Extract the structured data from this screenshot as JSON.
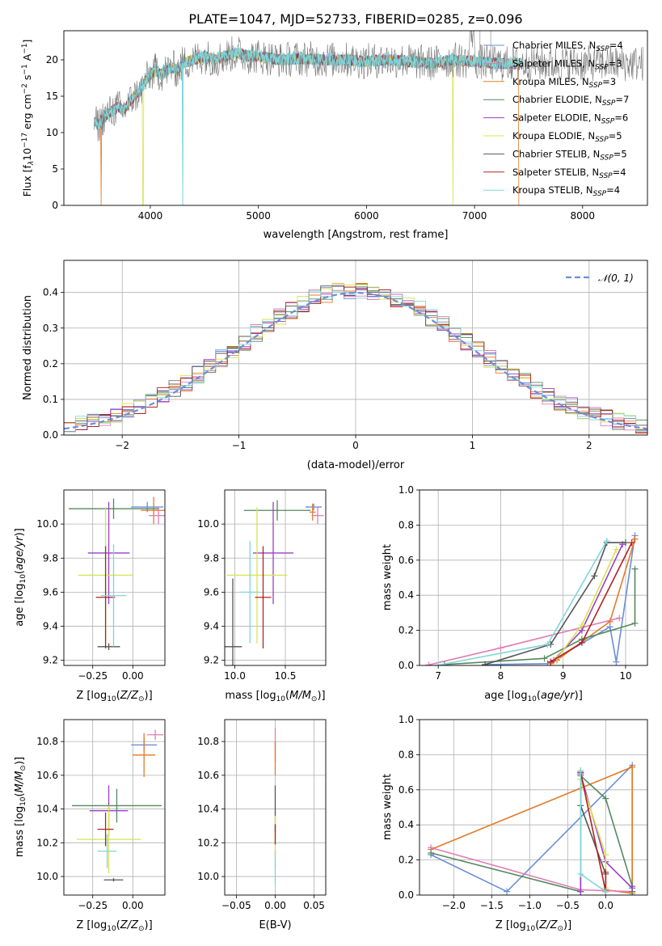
{
  "title": "PLATE=1047, MJD=52733, FIBERID=0285, z=0.096",
  "colors": {
    "C1": "#6a8fd8",
    "C2": "#e37a27",
    "C3": "#e27cb2",
    "C4": "#55885f",
    "C5": "#9b3fc7",
    "C6": "#d7e34d",
    "C7": "#555555",
    "C8": "#b32222",
    "C9": "#7ed6da"
  },
  "legend": {
    "spectrum": [
      {
        "label": "Chabrier MILES, N",
        "sub": "SSP",
        "tail": "=4",
        "color": "#6a8fd8"
      },
      {
        "label": "Salpeter MILES, N",
        "sub": "SSP",
        "tail": "=3",
        "color": "#e27cb2"
      },
      {
        "label": "Kroupa MILES, N",
        "sub": "SSP",
        "tail": "=3",
        "color": "#e37a27"
      },
      {
        "label": "Chabrier ELODIE, N",
        "sub": "SSP",
        "tail": "=7",
        "color": "#55885f"
      },
      {
        "label": "Salpeter ELODIE, N",
        "sub": "SSP",
        "tail": "=6",
        "color": "#9b3fc7"
      },
      {
        "label": "Kroupa ELODIE, N",
        "sub": "SSP",
        "tail": "=5",
        "color": "#d7e34d"
      },
      {
        "label": "Chabrier STELIB, N",
        "sub": "SSP",
        "tail": "=5",
        "color": "#555555"
      },
      {
        "label": "Salpeter STELIB, N",
        "sub": "SSP",
        "tail": "=4",
        "color": "#b32222"
      },
      {
        "label": "Kroupa STELIB, N",
        "sub": "SSP",
        "tail": "=4",
        "color": "#7ed6da"
      }
    ],
    "normal": {
      "label": "𝒩(0, 1)",
      "color": "#6a8fd8"
    }
  },
  "chart_data": [
    {
      "type": "line",
      "id": "spectrum",
      "xlabel": "wavelength [Angstrom, rest frame]",
      "ylabel": "Flux [f",
      "ylabel_sub": "λ",
      "ylabel_rest": "10",
      "ylabel_sup": "−17",
      "ylabel_tail": " erg cm",
      "ylabel_sup2": "−2",
      "ylabel_tail2": " s",
      "ylabel_sup3": "−1",
      "ylabel_tail3": " A",
      "ylabel_sup4": "−1",
      "ylabel_end": "]",
      "xlim": [
        3200,
        8600
      ],
      "ylim": [
        0,
        24
      ],
      "xticks": [
        4000,
        5000,
        6000,
        7000,
        8000
      ],
      "yticks": [
        0,
        5,
        10,
        15,
        20
      ],
      "grid": false,
      "continuum": {
        "x": [
          3480,
          3520,
          3560,
          3600,
          3650,
          3700,
          3750,
          3800,
          3850,
          3900,
          3950,
          4000,
          4050,
          4100,
          4150,
          4200,
          4250,
          4300,
          4400,
          4500,
          4600,
          4700,
          4800,
          4900,
          5000,
          5200,
          5400,
          5600,
          5800,
          6000,
          6200,
          6400,
          6600,
          6800,
          7000,
          7200,
          7400
        ],
        "y": [
          11.5,
          11.0,
          12.0,
          12.5,
          13.0,
          13.5,
          13.0,
          14.0,
          15.0,
          15.5,
          17.0,
          18.0,
          18.5,
          18.0,
          18.5,
          19.0,
          18.5,
          19.5,
          20.0,
          20.5,
          20.0,
          20.5,
          21.0,
          20.5,
          20.5,
          20.0,
          20.2,
          20.0,
          20.0,
          19.8,
          20.0,
          19.8,
          19.5,
          20.0,
          19.8,
          19.5,
          19.5
        ]
      },
      "absorption_drops": [
        3545,
        3933,
        4300,
        6800,
        7410
      ],
      "spike_wavelengths": [
        7050,
        7150
      ]
    },
    {
      "type": "step",
      "id": "residuals",
      "xlabel": "(data-model)/error",
      "ylabel": "Normed distribution",
      "xlim": [
        -2.5,
        2.5
      ],
      "ylim": [
        0,
        0.49
      ],
      "xticks": [
        -2,
        -1,
        0,
        1,
        2
      ],
      "xtick_labels": [
        "−2",
        "−1",
        "0",
        "1",
        "2"
      ],
      "yticks": [
        0,
        0.1,
        0.2,
        0.3,
        0.4
      ],
      "ytick_labels": [
        "0.0",
        "0.1",
        "0.2",
        "0.3",
        "0.4"
      ],
      "grid": true,
      "bin_width": 0.1,
      "legend_position": "top-right"
    },
    {
      "type": "errorbar",
      "id": "age-vs-z",
      "xlabel": "Z [log",
      "xlabel_sub": "10",
      "xlabel_rest": "(Z/Z",
      "xlabel_sub2": "⊙",
      "xlabel_end": ")]",
      "ylabel": "age  [log",
      "ylabel_sub": "10",
      "ylabel_rest": "(age/yr)]",
      "xlim": [
        -0.43,
        0.2
      ],
      "ylim": [
        9.17,
        10.2
      ],
      "xticks": [
        -0.25,
        0.0
      ],
      "xtick_labels": [
        "−0.25",
        "0.00"
      ],
      "yticks": [
        9.2,
        9.4,
        9.6,
        9.8,
        10.0
      ],
      "ytick_labels": [
        "9.2",
        "9.4",
        "9.6",
        "9.8",
        "10.0"
      ],
      "points": [
        {
          "x": 0.09,
          "y": 10.1,
          "xerr": 0.1,
          "yerr": 0.03,
          "color": "#6a8fd8"
        },
        {
          "x": 0.13,
          "y": 10.08,
          "xerr": 0.08,
          "yerr": 0.08,
          "color": "#e37a27"
        },
        {
          "x": 0.16,
          "y": 10.05,
          "xerr": 0.06,
          "yerr": 0.05,
          "color": "#e27cb2"
        },
        {
          "x": -0.12,
          "y": 10.09,
          "xerr": 0.28,
          "yerr": 0.06,
          "color": "#55885f"
        },
        {
          "x": -0.15,
          "y": 9.83,
          "xerr": 0.13,
          "yerr": 0.3,
          "color": "#9b3fc7"
        },
        {
          "x": -0.17,
          "y": 9.7,
          "xerr": 0.17,
          "yerr": 0.4,
          "color": "#d7e34d"
        },
        {
          "x": -0.15,
          "y": 9.28,
          "xerr": 0.07,
          "yerr": 0.02,
          "color": "#555555"
        },
        {
          "x": -0.17,
          "y": 9.57,
          "xerr": 0.06,
          "yerr": 0.3,
          "color": "#b32222"
        },
        {
          "x": -0.12,
          "y": 9.58,
          "xerr": 0.08,
          "yerr": 0.3,
          "color": "#7ed6da"
        }
      ]
    },
    {
      "type": "errorbar",
      "id": "age-vs-mass",
      "xlabel": "mass [log",
      "xlabel_sub": "10",
      "xlabel_rest": "(M/M",
      "xlabel_sub2": "⊙",
      "xlabel_end": ")]",
      "xlim": [
        9.9,
        10.9
      ],
      "ylim": [
        9.17,
        10.2
      ],
      "xticks": [
        10.0,
        10.5
      ],
      "xtick_labels": [
        "10.0",
        "10.5"
      ],
      "yticks": [
        9.2,
        9.4,
        9.6,
        9.8,
        10.0
      ],
      "ytick_labels": [
        "9.2",
        "9.4",
        "9.6",
        "9.8",
        "10.0"
      ],
      "points": [
        {
          "x": 10.78,
          "y": 10.1,
          "xerr": 0.08,
          "yerr": 0.02,
          "color": "#6a8fd8"
        },
        {
          "x": 10.77,
          "y": 10.07,
          "xerr": 0.03,
          "yerr": 0.05,
          "color": "#e37a27"
        },
        {
          "x": 10.82,
          "y": 10.05,
          "xerr": 0.06,
          "yerr": 0.05,
          "color": "#e27cb2"
        },
        {
          "x": 10.42,
          "y": 10.08,
          "xerr": 0.33,
          "yerr": 0.06,
          "color": "#55885f"
        },
        {
          "x": 10.38,
          "y": 9.83,
          "xerr": 0.2,
          "yerr": 0.3,
          "color": "#9b3fc7"
        },
        {
          "x": 10.22,
          "y": 9.7,
          "xerr": 0.3,
          "yerr": 0.4,
          "color": "#d7e34d"
        },
        {
          "x": 9.98,
          "y": 9.28,
          "xerr": 0.09,
          "yerr": 0.4,
          "color": "#555555"
        },
        {
          "x": 10.28,
          "y": 9.57,
          "xerr": 0.08,
          "yerr": 0.3,
          "color": "#b32222"
        },
        {
          "x": 10.15,
          "y": 9.6,
          "xerr": 0.1,
          "yerr": 0.3,
          "color": "#7ed6da"
        }
      ]
    },
    {
      "type": "line",
      "id": "weight-vs-age",
      "xlabel": "age  [log",
      "xlabel_sub": "10",
      "xlabel_rest": "(age/yr)]",
      "ylabel": "mass weight",
      "xlim": [
        6.7,
        10.35
      ],
      "ylim": [
        0,
        1
      ],
      "xticks": [
        7,
        8,
        9,
        10
      ],
      "xtick_labels": [
        "7",
        "8",
        "9",
        "10"
      ],
      "yticks": [
        0,
        0.2,
        0.4,
        0.6,
        0.8,
        1.0
      ],
      "ytick_labels": [
        "0.0",
        "0.2",
        "0.4",
        "0.6",
        "0.8",
        "1.0"
      ],
      "grid": true,
      "series": [
        {
          "color": "#6a8fd8",
          "x": [
            7.75,
            8.75,
            9.75,
            9.85,
            10.15
          ],
          "y": [
            0.005,
            0.01,
            0.22,
            0.02,
            0.74
          ]
        },
        {
          "color": "#e37a27",
          "x": [
            8.8,
            8.9,
            9.75,
            10.15
          ],
          "y": [
            0.01,
            0.03,
            0.25,
            0.72
          ]
        },
        {
          "color": "#e27cb2",
          "x": [
            6.85,
            8.0,
            9.9
          ],
          "y": [
            0.003,
            0.1,
            0.27
          ]
        },
        {
          "color": "#55885f",
          "x": [
            7.1,
            8.7,
            9.3,
            10.15,
            10.15
          ],
          "y": [
            0.005,
            0.04,
            0.15,
            0.24,
            0.55
          ]
        },
        {
          "color": "#9b3fc7",
          "x": [
            8.85,
            9.3,
            9.95
          ],
          "y": [
            0.03,
            0.2,
            0.69
          ]
        },
        {
          "color": "#d7e34d",
          "x": [
            8.9,
            9.3,
            9.85
          ],
          "y": [
            0.04,
            0.23,
            0.66
          ]
        },
        {
          "color": "#555555",
          "x": [
            7.75,
            8.8,
            9.5,
            9.7,
            10.0
          ],
          "y": [
            0.005,
            0.12,
            0.51,
            0.7,
            0.7
          ]
        },
        {
          "color": "#b32222",
          "x": [
            8.8,
            9.3,
            10.1
          ],
          "y": [
            0.02,
            0.13,
            0.7
          ]
        },
        {
          "color": "#7ed6da",
          "x": [
            7.0,
            8.75,
            9.7
          ],
          "y": [
            0.002,
            0.12,
            0.71
          ]
        }
      ]
    },
    {
      "type": "errorbar",
      "id": "mass-vs-z",
      "xlabel": "Z [log",
      "xlabel_sub": "10",
      "xlabel_rest": "(Z/Z",
      "xlabel_sub2": "⊙",
      "xlabel_end": ")]",
      "ylabel": "mass [log",
      "ylabel_sub": "10",
      "ylabel_rest": "(M/M",
      "ylabel_sub2": "⊙",
      "ylabel_end": ")]",
      "xlim": [
        -0.43,
        0.2
      ],
      "ylim": [
        9.89,
        10.93
      ],
      "xticks": [
        -0.25,
        0.0
      ],
      "xtick_labels": [
        "−0.25",
        "0.00"
      ],
      "yticks": [
        10.0,
        10.2,
        10.4,
        10.6,
        10.8
      ],
      "ytick_labels": [
        "10.0",
        "10.2",
        "10.4",
        "10.6",
        "10.8"
      ],
      "points": [
        {
          "x": 0.07,
          "y": 10.78,
          "xerr": 0.08,
          "yerr": 0.04,
          "color": "#6a8fd8"
        },
        {
          "x": 0.07,
          "y": 10.72,
          "xerr": 0.07,
          "yerr": 0.13,
          "color": "#e37a27"
        },
        {
          "x": 0.14,
          "y": 10.84,
          "xerr": 0.05,
          "yerr": 0.03,
          "color": "#e27cb2"
        },
        {
          "x": -0.1,
          "y": 10.42,
          "xerr": 0.28,
          "yerr": 0.1,
          "color": "#55885f"
        },
        {
          "x": -0.15,
          "y": 10.39,
          "xerr": 0.12,
          "yerr": 0.15,
          "color": "#9b3fc7"
        },
        {
          "x": -0.15,
          "y": 10.22,
          "xerr": 0.2,
          "yerr": 0.2,
          "color": "#d7e34d"
        },
        {
          "x": -0.12,
          "y": 9.98,
          "xerr": 0.06,
          "yerr": 0.01,
          "color": "#555555"
        },
        {
          "x": -0.17,
          "y": 10.28,
          "xerr": 0.05,
          "yerr": 0.1,
          "color": "#b32222"
        },
        {
          "x": -0.16,
          "y": 10.15,
          "xerr": 0.06,
          "yerr": 0.1,
          "color": "#7ed6da"
        }
      ]
    },
    {
      "type": "errorbar",
      "id": "mass-vs-ebv",
      "xlabel": "E(B-V)",
      "xlim": [
        -0.065,
        0.065
      ],
      "ylim": [
        9.89,
        10.93
      ],
      "xticks": [
        -0.05,
        0.0,
        0.05
      ],
      "xtick_labels": [
        "−0.05",
        "0.00",
        "0.05"
      ],
      "yticks": [
        10.0,
        10.2,
        10.4,
        10.6,
        10.8
      ],
      "ytick_labels": [
        "10.0",
        "10.2",
        "10.4",
        "10.6",
        "10.8"
      ],
      "points": [
        {
          "x": 0.0,
          "y": 10.78,
          "xerr": 0.0,
          "yerr": 0.1,
          "color": "#e27cb2"
        },
        {
          "x": 0.0,
          "y": 10.7,
          "xerr": 0.0,
          "yerr": 0.1,
          "color": "#e37a27"
        },
        {
          "x": 0.0,
          "y": 10.4,
          "xerr": 0.0,
          "yerr": 0.14,
          "color": "#555555"
        },
        {
          "x": 0.0,
          "y": 10.2,
          "xerr": 0.0,
          "yerr": 0.16,
          "color": "#d7e34d"
        },
        {
          "x": 0.0,
          "y": 10.25,
          "xerr": 0.0,
          "yerr": 0.06,
          "color": "#b32222"
        },
        {
          "x": 0.0,
          "y": 10.05,
          "xerr": 0.0,
          "yerr": 0.1,
          "color": "#7ed6da"
        }
      ]
    },
    {
      "type": "line",
      "id": "weight-vs-z",
      "xlabel": "Z [log",
      "xlabel_sub": "10",
      "xlabel_rest": "(Z/Z",
      "xlabel_sub2": "⊙",
      "xlabel_end": ")]",
      "ylabel": "mass weight",
      "xlim": [
        -2.45,
        0.55
      ],
      "ylim": [
        0,
        1
      ],
      "xticks": [
        -2.0,
        -1.5,
        -1.0,
        -0.5,
        0.0
      ],
      "xtick_labels": [
        "−2.0",
        "−1.5",
        "−1.0",
        "−0.5",
        "0.0"
      ],
      "yticks": [
        0,
        0.2,
        0.4,
        0.6,
        0.8,
        1.0
      ],
      "ytick_labels": [
        "0.0",
        "0.2",
        "0.4",
        "0.6",
        "0.8",
        "1.0"
      ],
      "grid": true,
      "series": [
        {
          "color": "#6a8fd8",
          "x": [
            -2.3,
            -1.3,
            0.35,
            0.35
          ],
          "y": [
            0.23,
            0.02,
            0.74,
            0.0
          ]
        },
        {
          "color": "#e37a27",
          "x": [
            -2.3,
            0.35,
            0.35,
            0.0
          ],
          "y": [
            0.26,
            0.73,
            0.01,
            0.03
          ]
        },
        {
          "color": "#e27cb2",
          "x": [
            -2.3,
            -0.33,
            0.35
          ],
          "y": [
            0.27,
            0.03,
            0.02
          ]
        },
        {
          "color": "#55885f",
          "x": [
            -2.3,
            -0.33,
            -0.33,
            0.0,
            0.35,
            0.35
          ],
          "y": [
            0.24,
            0.02,
            0.68,
            0.55,
            0.05,
            0.02
          ]
        },
        {
          "color": "#9b3fc7",
          "x": [
            -0.33,
            -0.33,
            0.0,
            0.35
          ],
          "y": [
            0.02,
            0.69,
            0.19,
            0.04
          ]
        },
        {
          "color": "#d7e34d",
          "x": [
            -0.33,
            0.0,
            0.0
          ],
          "y": [
            0.66,
            0.23,
            0.04
          ]
        },
        {
          "color": "#555555",
          "x": [
            -0.33,
            -0.33,
            0.0,
            0.0
          ],
          "y": [
            0.7,
            0.51,
            0.12,
            0.02
          ]
        },
        {
          "color": "#b32222",
          "x": [
            -0.33,
            0.0,
            0.0
          ],
          "y": [
            0.7,
            0.02,
            0.13
          ]
        },
        {
          "color": "#7ed6da",
          "x": [
            -0.33,
            -0.33,
            0.0
          ],
          "y": [
            0.71,
            0.12,
            0.02
          ]
        }
      ]
    }
  ]
}
